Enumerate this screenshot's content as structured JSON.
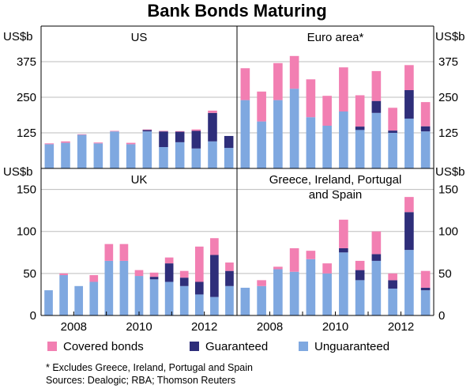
{
  "title": "Bank Bonds Maturing",
  "units_left": "US$b",
  "units_right": "US$b",
  "colors": {
    "covered": "#f27fb2",
    "guaranteed": "#2e2e7a",
    "unguaranteed": "#7fa8e0"
  },
  "legend": {
    "covered": "Covered bonds",
    "guaranteed": "Guaranteed",
    "unguaranteed": "Unguaranteed"
  },
  "footnote": "*   Excludes Greece, Ireland, Portugal and Spain",
  "sources": "Sources: Dealogic; RBA; Thomson Reuters",
  "chart_data": [
    {
      "id": "us",
      "type": "bar",
      "stacked": true,
      "title_lines": [
        "US"
      ],
      "ylim": [
        0,
        500
      ],
      "yticks": [
        125,
        250,
        375
      ],
      "ytick_labels": [
        "125",
        "250",
        "375"
      ],
      "tick_side": "left",
      "x_tick_labels": [
        "2008",
        "2010",
        "2012"
      ],
      "series": [
        {
          "name": "Unguaranteed",
          "values": [
            85,
            90,
            118,
            88,
            130,
            85,
            130,
            75,
            92,
            70,
            95,
            72
          ]
        },
        {
          "name": "Guaranteed",
          "values": [
            0,
            0,
            0,
            0,
            0,
            0,
            5,
            55,
            37,
            62,
            100,
            42
          ]
        },
        {
          "name": "Covered bonds",
          "values": [
            3,
            5,
            2,
            3,
            2,
            5,
            2,
            2,
            2,
            5,
            8,
            0
          ]
        }
      ]
    },
    {
      "id": "euro",
      "type": "bar",
      "stacked": true,
      "title_lines": [
        "Euro area*"
      ],
      "ylim": [
        0,
        500
      ],
      "yticks": [
        125,
        250,
        375
      ],
      "ytick_labels": [
        "125",
        "250",
        "375"
      ],
      "tick_side": "right",
      "x_tick_labels": [],
      "series": [
        {
          "name": "Unguaranteed",
          "values": [
            240,
            165,
            240,
            280,
            180,
            150,
            200,
            135,
            195,
            125,
            175,
            130
          ]
        },
        {
          "name": "Guaranteed",
          "values": [
            0,
            0,
            0,
            0,
            0,
            0,
            0,
            12,
            42,
            8,
            100,
            18
          ]
        },
        {
          "name": "Covered bonds",
          "values": [
            112,
            105,
            130,
            115,
            133,
            105,
            155,
            110,
            105,
            80,
            88,
            85
          ]
        }
      ]
    },
    {
      "id": "uk",
      "type": "bar",
      "stacked": true,
      "title_lines": [
        "UK"
      ],
      "ylim": [
        0,
        175
      ],
      "yticks": [
        0,
        50,
        100,
        150
      ],
      "ytick_labels": [
        "0",
        "50",
        "100",
        "150"
      ],
      "tick_side": "left",
      "x_tick_labels": [
        "2008",
        "2010",
        "2012"
      ],
      "series": [
        {
          "name": "Unguaranteed",
          "values": [
            30,
            48,
            35,
            40,
            65,
            65,
            47,
            43,
            40,
            35,
            25,
            22,
            35
          ]
        },
        {
          "name": "Guaranteed",
          "values": [
            0,
            0,
            0,
            0,
            0,
            0,
            0,
            3,
            22,
            10,
            15,
            50,
            18
          ]
        },
        {
          "name": "Covered bonds",
          "values": [
            0,
            2,
            0,
            8,
            20,
            20,
            7,
            5,
            7,
            8,
            42,
            20,
            10
          ]
        }
      ]
    },
    {
      "id": "gips",
      "type": "bar",
      "stacked": true,
      "title_lines": [
        "Greece, Ireland, Portugal",
        "and Spain"
      ],
      "ylim": [
        0,
        175
      ],
      "yticks": [
        0,
        50,
        100,
        150
      ],
      "ytick_labels": [
        "0",
        "50",
        "100",
        "150"
      ],
      "tick_side": "right",
      "x_tick_labels": [
        "2008",
        "2010",
        "2012"
      ],
      "series": [
        {
          "name": "Unguaranteed",
          "values": [
            33,
            35,
            55,
            52,
            67,
            50,
            75,
            42,
            65,
            32,
            78,
            30
          ]
        },
        {
          "name": "Guaranteed",
          "values": [
            0,
            0,
            0,
            0,
            0,
            0,
            5,
            12,
            8,
            10,
            45,
            3
          ]
        },
        {
          "name": "Covered bonds",
          "values": [
            0,
            7,
            3,
            28,
            10,
            12,
            34,
            11,
            27,
            8,
            18,
            20
          ]
        }
      ]
    }
  ]
}
